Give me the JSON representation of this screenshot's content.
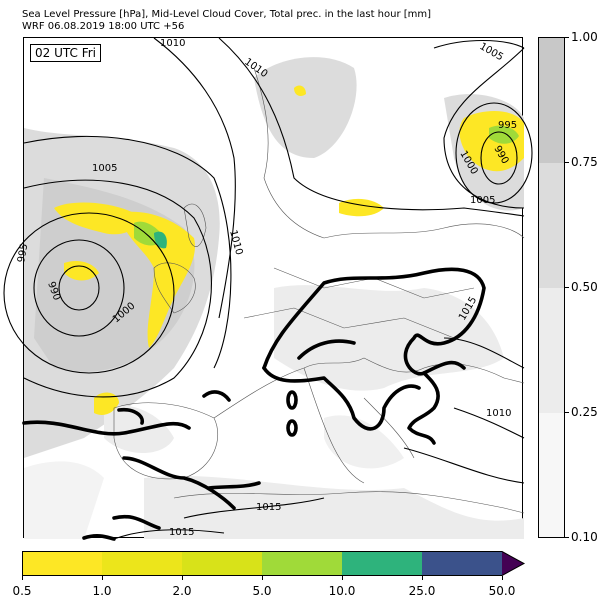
{
  "title": {
    "line1": "Sea Level Pressure [hPa], Mid-Level Cloud Cover, Total prec. in the last hour [mm]",
    "line2": "WRF 06.08.2019 18:00 UTC +56"
  },
  "map": {
    "time_label": "02 UTC Fri",
    "isobar_labels": [
      "1010",
      "1010",
      "1005",
      "1005",
      "995",
      "990",
      "1000",
      "995",
      "990",
      "1000",
      "1010",
      "1005",
      "1015",
      "1010",
      "1015",
      "1015"
    ]
  },
  "cloud_colorbar": {
    "ticks": [
      "1.00",
      "0.75",
      "0.50",
      "0.25",
      "0.10"
    ],
    "colors": [
      "#c8c8c8",
      "#dcdcdc",
      "#ececec",
      "#f7f7f7"
    ]
  },
  "precip_colorbar": {
    "ticks": [
      "0.5",
      "1.0",
      "2.0",
      "5.0",
      "10.0",
      "25.0",
      "50.0"
    ],
    "colors": [
      "#fde725",
      "#ece51b",
      "#d8e219",
      "#a0da39",
      "#2eb37c",
      "#3b528b",
      "#440154"
    ],
    "extend": "max"
  }
}
